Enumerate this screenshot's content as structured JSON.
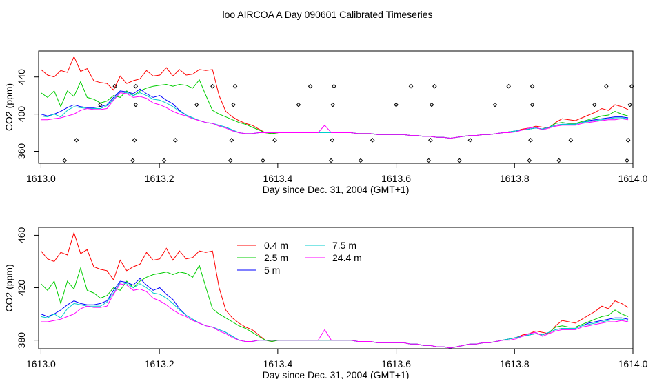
{
  "figure": {
    "title": "loo AIRCOA A  Day 090601  Calibrated Timeseries"
  },
  "chart_data": [
    {
      "type": "scatter",
      "title": "loo AIRCOA A  Day 090601  Calibrated Timeseries",
      "xlabel": "Day since Dec. 31, 2004 (GMT+1)",
      "ylabel": "CO2 (ppm)",
      "xlim": [
        1612.996,
        1614.0
      ],
      "ylim": [
        347,
        468
      ],
      "xticks": [
        1613.0,
        1613.2,
        1613.4,
        1613.6,
        1613.8,
        1614.0
      ],
      "xtick_labels": [
        "1613.0",
        "1613.2",
        "1613.4",
        "1613.6",
        "1613.8",
        "1614.0"
      ],
      "yticks": [
        360,
        400,
        440
      ],
      "ytick_labels": [
        "360",
        "400",
        "440"
      ],
      "grid": false,
      "colors": {
        "0.4 m": "#ff0000",
        "2.5 m": "#00cd00",
        "5 m": "#0000ff",
        "7.5 m": "#00cdcd",
        "24.4 m": "#ff00ff",
        "points": "#000000"
      },
      "points": {
        "name": "",
        "x": [
          1613.04,
          1613.06,
          1613.1,
          1613.125,
          1613.155,
          1613.158,
          1613.16,
          1613.16,
          1613.208,
          1613.227,
          1613.263,
          1613.29,
          1613.32,
          1613.322,
          1613.325,
          1613.328,
          1613.375,
          1613.395,
          1613.435,
          1613.455,
          1613.49,
          1613.492,
          1613.493,
          1613.495,
          1613.54,
          1613.56,
          1613.6,
          1613.625,
          1613.655,
          1613.658,
          1613.66,
          1613.665,
          1613.707,
          1613.725,
          1613.767,
          1613.79,
          1613.825,
          1613.827,
          1613.83,
          1613.83,
          1613.875,
          1613.895,
          1613.935,
          1613.955,
          1613.99,
          1613.992,
          1613.995,
          1613.998
        ],
        "y": [
          350,
          372,
          410,
          430,
          350,
          372,
          410,
          430,
          350,
          372,
          410,
          430,
          350,
          372,
          410,
          430,
          350,
          372,
          410,
          430,
          350,
          372,
          410,
          430,
          350,
          372,
          410,
          430,
          350,
          372,
          410,
          430,
          350,
          372,
          410,
          430,
          350,
          372,
          410,
          430,
          350,
          372,
          410,
          430,
          350,
          372,
          410,
          430
        ]
      },
      "series": [
        {
          "name": "0.4 m",
          "values": [
            448,
            442,
            440,
            447,
            445,
            462,
            446,
            449,
            436,
            434,
            433,
            426,
            441,
            433,
            436,
            438,
            447,
            441,
            442,
            450,
            441,
            448,
            442,
            443,
            448,
            447,
            448,
            420,
            403,
            397,
            393,
            390,
            388,
            384,
            380,
            379,
            380,
            380,
            380,
            380,
            380,
            380,
            380,
            380,
            380,
            380,
            380,
            380,
            379,
            379,
            379,
            378,
            378,
            378,
            378,
            378,
            377,
            377,
            376,
            376,
            375,
            375,
            374,
            375,
            376,
            377,
            377,
            378,
            378,
            379,
            380,
            381,
            382,
            384,
            385,
            387,
            386,
            385,
            391,
            395,
            394,
            393,
            396,
            399,
            402,
            406,
            404,
            410,
            408,
            405
          ]
        },
        {
          "name": "2.5 m",
          "values": [
            423,
            418,
            425,
            408,
            425,
            419,
            435,
            418,
            416,
            412,
            414,
            420,
            418,
            425,
            420,
            425,
            428,
            430,
            431,
            432,
            430,
            432,
            431,
            428,
            437,
            420,
            404,
            400,
            397,
            394,
            391,
            389,
            386,
            383,
            380,
            379,
            380,
            380,
            380,
            380,
            380,
            380,
            380,
            380,
            380,
            380,
            380,
            380,
            379,
            379,
            379,
            378,
            378,
            378,
            378,
            378,
            377,
            377,
            376,
            376,
            375,
            375,
            374,
            375,
            376,
            377,
            377,
            378,
            378,
            379,
            380,
            381,
            382,
            383,
            384,
            385,
            384,
            386,
            390,
            391,
            390,
            390,
            392,
            394,
            396,
            398,
            399,
            403,
            400,
            398
          ]
        },
        {
          "name": "5 m",
          "values": [
            400,
            398,
            400,
            403,
            407,
            410,
            408,
            407,
            407,
            408,
            410,
            418,
            425,
            424,
            422,
            427,
            422,
            418,
            420,
            415,
            411,
            404,
            399,
            396,
            393,
            391,
            390,
            388,
            386,
            383,
            380,
            379,
            379,
            380,
            380,
            380,
            380,
            380,
            380,
            380,
            380,
            380,
            380,
            380,
            380,
            380,
            380,
            380,
            379,
            379,
            379,
            378,
            378,
            378,
            378,
            378,
            377,
            377,
            376,
            376,
            375,
            375,
            374,
            375,
            376,
            377,
            377,
            378,
            378,
            379,
            380,
            381,
            382,
            383,
            384,
            385,
            384,
            386,
            388,
            389,
            389,
            389,
            391,
            393,
            394,
            395,
            396,
            397,
            397,
            396
          ]
        },
        {
          "name": "7.5 m",
          "values": [
            398,
            397,
            400,
            397,
            404,
            408,
            407,
            406,
            406,
            406,
            409,
            416,
            424,
            423,
            420,
            423,
            420,
            416,
            415,
            412,
            408,
            403,
            399,
            396,
            393,
            391,
            390,
            388,
            386,
            383,
            380,
            379,
            379,
            380,
            380,
            380,
            380,
            380,
            380,
            380,
            380,
            380,
            380,
            380,
            380,
            380,
            380,
            380,
            379,
            379,
            379,
            378,
            378,
            378,
            378,
            378,
            377,
            377,
            376,
            376,
            375,
            375,
            374,
            375,
            376,
            377,
            377,
            378,
            378,
            379,
            380,
            381,
            382,
            383,
            384,
            385,
            384,
            386,
            388,
            389,
            389,
            389,
            391,
            392,
            393,
            394,
            395,
            396,
            396,
            395
          ]
        },
        {
          "name": "24.4 m",
          "values": [
            394,
            394,
            395,
            396,
            398,
            400,
            404,
            406,
            405,
            405,
            406,
            415,
            423,
            422,
            418,
            419,
            417,
            412,
            410,
            407,
            403,
            400,
            398,
            395,
            393,
            391,
            390,
            387,
            385,
            382,
            380,
            379,
            379,
            380,
            380,
            380,
            380,
            380,
            380,
            380,
            380,
            380,
            380,
            388,
            380,
            380,
            380,
            380,
            379,
            379,
            379,
            378,
            378,
            378,
            378,
            378,
            377,
            377,
            376,
            376,
            375,
            375,
            374,
            375,
            376,
            377,
            377,
            378,
            378,
            379,
            380,
            380,
            381,
            383,
            385,
            386,
            383,
            385,
            387,
            388,
            388,
            388,
            390,
            391,
            392,
            393,
            394,
            394,
            395,
            394
          ]
        }
      ]
    },
    {
      "type": "line",
      "title": "",
      "xlabel": "Day since Dec. 31, 2004 (GMT+1)",
      "ylabel": "CO2 (ppm)",
      "xlim": [
        1612.996,
        1614.0
      ],
      "ylim": [
        373.5,
        466
      ],
      "xticks": [
        1613.0,
        1613.2,
        1613.4,
        1613.6,
        1613.8,
        1614.0
      ],
      "xtick_labels": [
        "1613.0",
        "1613.2",
        "1613.4",
        "1613.6",
        "1613.8",
        "1614.0"
      ],
      "yticks": [
        380,
        420,
        460
      ],
      "ytick_labels": [
        "380",
        "420",
        "460"
      ],
      "grid": false,
      "legend_placement": "top-center",
      "legend": [
        "0.4 m",
        "2.5 m",
        "5 m",
        "7.5 m",
        "24.4 m"
      ],
      "colors": {
        "0.4 m": "#ff0000",
        "2.5 m": "#00cd00",
        "5 m": "#0000ff",
        "7.5 m": "#00cdcd",
        "24.4 m": "#ff00ff"
      },
      "series": [
        {
          "name": "0.4 m",
          "values": [
            448,
            442,
            440,
            447,
            445,
            462,
            446,
            449,
            436,
            434,
            433,
            426,
            441,
            433,
            436,
            438,
            447,
            441,
            442,
            450,
            441,
            448,
            442,
            443,
            448,
            447,
            448,
            420,
            403,
            397,
            393,
            390,
            388,
            384,
            380,
            379,
            380,
            380,
            380,
            380,
            380,
            380,
            380,
            380,
            380,
            380,
            380,
            380,
            379,
            379,
            379,
            378,
            378,
            378,
            378,
            378,
            377,
            377,
            376,
            376,
            375,
            375,
            374,
            375,
            376,
            377,
            377,
            378,
            378,
            379,
            380,
            381,
            382,
            384,
            385,
            387,
            386,
            385,
            391,
            395,
            394,
            393,
            396,
            399,
            402,
            406,
            404,
            410,
            408,
            405
          ]
        },
        {
          "name": "2.5 m",
          "values": [
            423,
            418,
            425,
            408,
            425,
            419,
            435,
            418,
            416,
            412,
            414,
            420,
            418,
            425,
            420,
            425,
            428,
            430,
            431,
            432,
            430,
            432,
            431,
            428,
            437,
            420,
            404,
            400,
            397,
            394,
            391,
            389,
            386,
            383,
            380,
            379,
            380,
            380,
            380,
            380,
            380,
            380,
            380,
            380,
            380,
            380,
            380,
            380,
            379,
            379,
            379,
            378,
            378,
            378,
            378,
            378,
            377,
            377,
            376,
            376,
            375,
            375,
            374,
            375,
            376,
            377,
            377,
            378,
            378,
            379,
            380,
            381,
            382,
            383,
            384,
            385,
            384,
            386,
            390,
            391,
            390,
            390,
            392,
            394,
            396,
            398,
            399,
            403,
            400,
            398
          ]
        },
        {
          "name": "5 m",
          "values": [
            400,
            398,
            400,
            403,
            407,
            410,
            408,
            407,
            407,
            408,
            410,
            418,
            425,
            424,
            422,
            427,
            422,
            418,
            420,
            415,
            411,
            404,
            399,
            396,
            393,
            391,
            390,
            388,
            386,
            383,
            380,
            379,
            379,
            380,
            380,
            380,
            380,
            380,
            380,
            380,
            380,
            380,
            380,
            380,
            380,
            380,
            380,
            380,
            379,
            379,
            379,
            378,
            378,
            378,
            378,
            378,
            377,
            377,
            376,
            376,
            375,
            375,
            374,
            375,
            376,
            377,
            377,
            378,
            378,
            379,
            380,
            381,
            382,
            383,
            384,
            385,
            384,
            386,
            388,
            389,
            389,
            389,
            391,
            393,
            394,
            395,
            396,
            397,
            397,
            396
          ]
        },
        {
          "name": "7.5 m",
          "values": [
            398,
            397,
            400,
            397,
            404,
            408,
            407,
            406,
            406,
            406,
            409,
            416,
            424,
            423,
            420,
            423,
            420,
            416,
            415,
            412,
            408,
            403,
            399,
            396,
            393,
            391,
            390,
            388,
            386,
            383,
            380,
            379,
            379,
            380,
            380,
            380,
            380,
            380,
            380,
            380,
            380,
            380,
            380,
            380,
            380,
            380,
            380,
            380,
            379,
            379,
            379,
            378,
            378,
            378,
            378,
            378,
            377,
            377,
            376,
            376,
            375,
            375,
            374,
            375,
            376,
            377,
            377,
            378,
            378,
            379,
            380,
            381,
            382,
            383,
            384,
            385,
            384,
            386,
            388,
            389,
            389,
            389,
            391,
            392,
            393,
            394,
            395,
            396,
            396,
            395
          ]
        },
        {
          "name": "24.4 m",
          "values": [
            394,
            394,
            395,
            396,
            398,
            400,
            404,
            406,
            405,
            405,
            406,
            415,
            423,
            422,
            418,
            419,
            417,
            412,
            410,
            407,
            403,
            400,
            398,
            395,
            393,
            391,
            390,
            387,
            385,
            382,
            380,
            379,
            379,
            380,
            380,
            380,
            380,
            380,
            380,
            380,
            380,
            380,
            380,
            388,
            380,
            380,
            380,
            380,
            379,
            379,
            379,
            378,
            378,
            378,
            378,
            378,
            377,
            377,
            376,
            376,
            375,
            375,
            374,
            375,
            376,
            377,
            377,
            378,
            378,
            379,
            380,
            380,
            381,
            383,
            385,
            386,
            383,
            385,
            387,
            388,
            388,
            388,
            390,
            391,
            392,
            393,
            394,
            394,
            395,
            394
          ]
        }
      ],
      "x_start": 1613.0,
      "x_end": 1613.992
    }
  ]
}
